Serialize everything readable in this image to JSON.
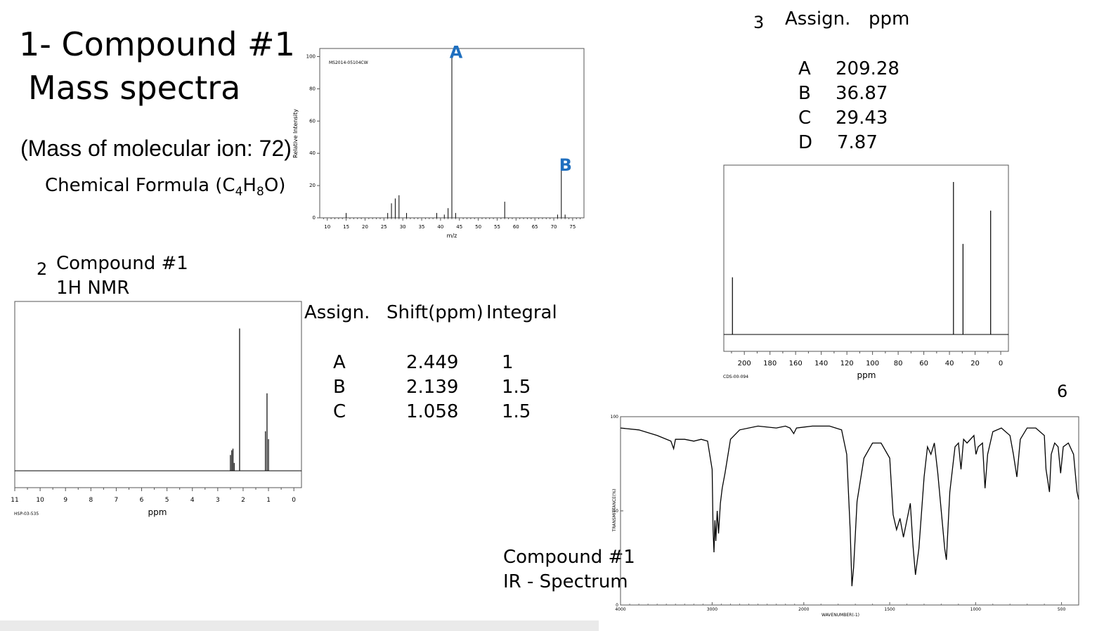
{
  "slide": {
    "title_line1": "1- Compound #1",
    "title_line2": "Mass spectra",
    "molecular_ion": "(Mass of molecular ion: 72)",
    "formula_prefix": "Chemical Formula (C",
    "formula_sub1": "4",
    "formula_mid": "H",
    "formula_sub2": "8",
    "formula_suffix": "O)"
  },
  "nmr_section": {
    "number": "2",
    "title_line1": "Compound #1",
    "title_line2": "1H NMR",
    "table": {
      "headers": [
        "Assign.",
        "Shift(ppm)",
        "Integral"
      ],
      "rows": [
        {
          "assign": "A",
          "shift": "2.449",
          "integral": "1"
        },
        {
          "assign": "B",
          "shift": "2.139",
          "integral": "1.5"
        },
        {
          "assign": "C",
          "shift": "1.058",
          "integral": "1.5"
        }
      ]
    }
  },
  "c13_section": {
    "number": "3",
    "headers": [
      "Assign.",
      "ppm"
    ],
    "rows": [
      {
        "assign": "A",
        "ppm": "209.28"
      },
      {
        "assign": "B",
        "ppm": "36.87"
      },
      {
        "assign": "C",
        "ppm": "29.43"
      },
      {
        "assign": "D",
        "ppm": "7.87"
      }
    ]
  },
  "ir_section": {
    "number": "6",
    "title_line1": "Compound #1",
    "title_line2": "IR - Spectrum"
  },
  "chart_data": [
    {
      "type": "bar",
      "name": "mass-spectrum",
      "id_label": "MS2014-05104CW",
      "xlabel": "m/z",
      "ylabel": "Relative Intensity",
      "xlim": [
        8,
        78
      ],
      "ylim": [
        0,
        105
      ],
      "xticks": [
        10,
        15,
        20,
        25,
        30,
        35,
        40,
        45,
        50,
        55,
        60,
        65,
        70,
        75
      ],
      "yticks": [
        0,
        20,
        40,
        60,
        80,
        100
      ],
      "peaks": [
        {
          "x": 15,
          "y": 3
        },
        {
          "x": 26,
          "y": 3
        },
        {
          "x": 27,
          "y": 9
        },
        {
          "x": 28,
          "y": 12
        },
        {
          "x": 29,
          "y": 14
        },
        {
          "x": 31,
          "y": 3
        },
        {
          "x": 39,
          "y": 3
        },
        {
          "x": 41,
          "y": 2
        },
        {
          "x": 42,
          "y": 6
        },
        {
          "x": 43,
          "y": 100
        },
        {
          "x": 44,
          "y": 3
        },
        {
          "x": 57,
          "y": 10
        },
        {
          "x": 71,
          "y": 2
        },
        {
          "x": 72,
          "y": 30
        },
        {
          "x": 73,
          "y": 2
        }
      ],
      "annotations": [
        {
          "label": "A",
          "x": 43,
          "y": 100,
          "color": "#1f6fbf"
        },
        {
          "label": "B",
          "x": 72,
          "y": 30,
          "color": "#1f6fbf"
        }
      ]
    },
    {
      "type": "line",
      "name": "1h-nmr",
      "id_label": "HSP-03-535",
      "xlabel": "ppm",
      "xlim": [
        11,
        -0.3
      ],
      "xticks": [
        11,
        10,
        9,
        8,
        7,
        6,
        5,
        4,
        3,
        2,
        1,
        0
      ],
      "ylim": [
        0,
        100
      ],
      "peaks": [
        {
          "x": 2.5,
          "y": 10
        },
        {
          "x": 2.449,
          "y": 13
        },
        {
          "x": 2.4,
          "y": 14
        },
        {
          "x": 2.35,
          "y": 5
        },
        {
          "x": 2.139,
          "y": 90
        },
        {
          "x": 1.12,
          "y": 25
        },
        {
          "x": 1.058,
          "y": 49
        },
        {
          "x": 1.0,
          "y": 20
        }
      ]
    },
    {
      "type": "line",
      "name": "13c-nmr",
      "id_label": "CDS-00-094",
      "xlabel": "ppm",
      "xlim": [
        216,
        -6
      ],
      "xticks": [
        200,
        180,
        160,
        140,
        120,
        100,
        80,
        60,
        40,
        20,
        0
      ],
      "ylim": [
        0,
        100
      ],
      "peaks": [
        {
          "x": 209.28,
          "y": 36
        },
        {
          "x": 36.87,
          "y": 96
        },
        {
          "x": 29.43,
          "y": 57
        },
        {
          "x": 7.87,
          "y": 78
        }
      ]
    },
    {
      "type": "line",
      "name": "ir-spectrum",
      "xlabel": "WAVENUMBER(-1)",
      "ylabel": "TRANSMITTANCE(%)",
      "xlim": [
        4000,
        400
      ],
      "ylim": [
        0,
        100
      ],
      "xticks": [
        4000,
        3000,
        2000,
        1500,
        1000,
        500
      ],
      "yticks": [
        0,
        50,
        100
      ],
      "points": [
        [
          4000,
          94
        ],
        [
          3800,
          93
        ],
        [
          3600,
          90
        ],
        [
          3450,
          87
        ],
        [
          3420,
          83
        ],
        [
          3400,
          88
        ],
        [
          3300,
          88
        ],
        [
          3200,
          87
        ],
        [
          3120,
          88
        ],
        [
          3050,
          87
        ],
        [
          3000,
          72
        ],
        [
          2990,
          40
        ],
        [
          2980,
          28
        ],
        [
          2970,
          45
        ],
        [
          2960,
          34
        ],
        [
          2945,
          50
        ],
        [
          2930,
          38
        ],
        [
          2910,
          54
        ],
        [
          2890,
          62
        ],
        [
          2860,
          70
        ],
        [
          2800,
          88
        ],
        [
          2700,
          93
        ],
        [
          2500,
          95
        ],
        [
          2300,
          94
        ],
        [
          2200,
          95
        ],
        [
          2150,
          94
        ],
        [
          2110,
          91
        ],
        [
          2080,
          94
        ],
        [
          1950,
          95
        ],
        [
          1850,
          95
        ],
        [
          1780,
          93
        ],
        [
          1750,
          80
        ],
        [
          1730,
          40
        ],
        [
          1720,
          10
        ],
        [
          1710,
          20
        ],
        [
          1690,
          55
        ],
        [
          1650,
          78
        ],
        [
          1600,
          86
        ],
        [
          1550,
          86
        ],
        [
          1500,
          78
        ],
        [
          1480,
          48
        ],
        [
          1460,
          40
        ],
        [
          1440,
          46
        ],
        [
          1420,
          36
        ],
        [
          1400,
          45
        ],
        [
          1380,
          54
        ],
        [
          1365,
          32
        ],
        [
          1350,
          16
        ],
        [
          1330,
          30
        ],
        [
          1300,
          68
        ],
        [
          1280,
          84
        ],
        [
          1260,
          80
        ],
        [
          1240,
          86
        ],
        [
          1220,
          70
        ],
        [
          1180,
          30
        ],
        [
          1170,
          24
        ],
        [
          1150,
          60
        ],
        [
          1120,
          84
        ],
        [
          1100,
          86
        ],
        [
          1085,
          72
        ],
        [
          1070,
          88
        ],
        [
          1050,
          86
        ],
        [
          1010,
          90
        ],
        [
          998,
          80
        ],
        [
          985,
          84
        ],
        [
          960,
          86
        ],
        [
          945,
          62
        ],
        [
          930,
          80
        ],
        [
          900,
          92
        ],
        [
          850,
          94
        ],
        [
          800,
          90
        ],
        [
          780,
          80
        ],
        [
          760,
          68
        ],
        [
          740,
          88
        ],
        [
          700,
          94
        ],
        [
          650,
          94
        ],
        [
          600,
          90
        ],
        [
          590,
          72
        ],
        [
          570,
          60
        ],
        [
          560,
          80
        ],
        [
          540,
          86
        ],
        [
          520,
          84
        ],
        [
          505,
          70
        ],
        [
          490,
          84
        ],
        [
          460,
          86
        ],
        [
          430,
          80
        ],
        [
          410,
          60
        ],
        [
          400,
          56
        ]
      ]
    }
  ]
}
